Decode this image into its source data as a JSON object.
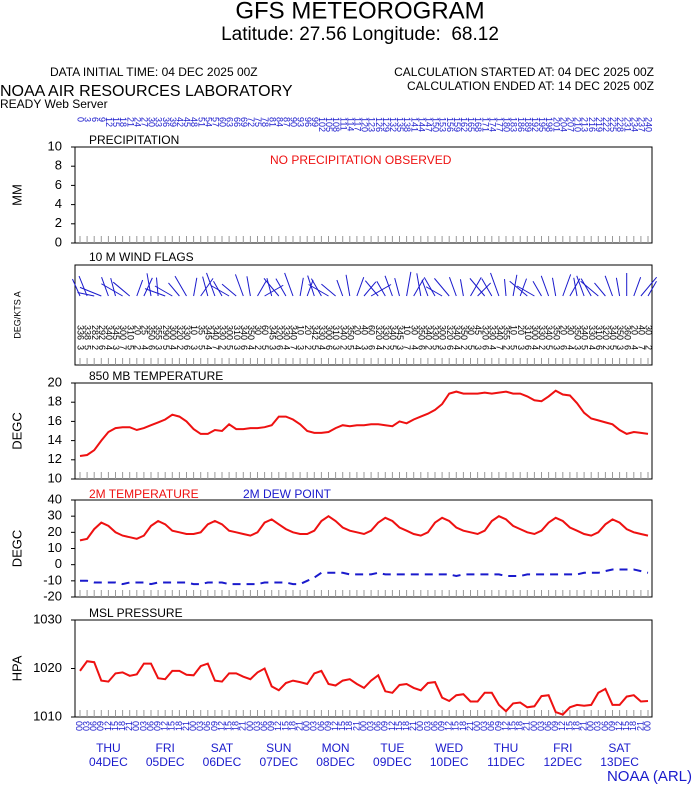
{
  "header": {
    "title": "GFS METEOROGRAM",
    "subtitle": "Latitude: 27.56 Longitude:  68.12",
    "data_initial": "DATA INITIAL TIME: 04 DEC 2025 00Z",
    "calc_started": "CALCULATION STARTED AT: 04 DEC 2025 00Z",
    "calc_ended": "CALCULATION ENDED AT: 14 DEC 2025 00Z",
    "lab": "NOAA AIR RESOURCES LABORATORY",
    "server": "READY Web Server",
    "footer": "NOAA (ARL)"
  },
  "time_axis": {
    "hours": [
      0,
      3,
      6,
      9,
      12,
      15,
      18,
      21,
      24,
      27,
      30,
      33,
      36,
      39,
      42,
      45,
      48,
      51,
      54,
      57,
      60,
      63,
      66,
      69,
      72,
      75,
      78,
      81,
      84,
      87,
      90,
      93,
      96,
      99,
      102,
      105,
      108,
      111,
      114,
      117,
      120,
      123,
      126,
      129,
      132,
      135,
      138,
      141,
      144,
      147,
      150,
      153,
      156,
      159,
      162,
      165,
      168,
      171,
      174,
      177,
      180,
      183,
      186,
      189,
      192,
      195,
      198,
      201,
      204,
      207,
      210,
      213,
      216,
      219,
      222,
      225,
      228,
      231,
      234,
      237,
      240
    ],
    "xlim": [
      0,
      240
    ],
    "hour_labels": [
      "00",
      "03",
      "06",
      "09",
      "12",
      "15",
      "18",
      "21",
      "00",
      "03",
      "06",
      "09",
      "12",
      "15",
      "18",
      "21",
      "00",
      "03",
      "06",
      "09",
      "12",
      "15",
      "18",
      "21",
      "00",
      "03",
      "06",
      "09",
      "12",
      "15",
      "18",
      "21",
      "00",
      "03",
      "06",
      "09",
      "12",
      "15",
      "18",
      "21",
      "00",
      "03",
      "06",
      "09",
      "12",
      "15",
      "18",
      "21",
      "00",
      "03",
      "06",
      "09",
      "12",
      "15",
      "18",
      "21",
      "00",
      "03",
      "06",
      "09",
      "12",
      "15",
      "18",
      "21",
      "00",
      "03",
      "06",
      "09",
      "12",
      "15",
      "18",
      "21",
      "00",
      "03",
      "06",
      "09",
      "12",
      "15",
      "18",
      "21",
      "00"
    ],
    "days": [
      {
        "name": "THU",
        "date": "04DEC"
      },
      {
        "name": "FRI",
        "date": "05DEC"
      },
      {
        "name": "SAT",
        "date": "06DEC"
      },
      {
        "name": "SUN",
        "date": "07DEC"
      },
      {
        "name": "MON",
        "date": "08DEC"
      },
      {
        "name": "TUE",
        "date": "09DEC"
      },
      {
        "name": "WED",
        "date": "10DEC"
      },
      {
        "name": "THU",
        "date": "11DEC"
      },
      {
        "name": "FRI",
        "date": "12DEC"
      },
      {
        "name": "SAT",
        "date": "13DEC"
      }
    ]
  },
  "chart_data": [
    {
      "type": "line",
      "title": "PRECIPITATION",
      "note": "NO PRECIPITATION OBSERVED",
      "y_label": "MM",
      "ylim": [
        0,
        10
      ],
      "yticks": [
        0,
        2,
        4,
        6,
        8,
        10
      ],
      "series": []
    },
    {
      "type": "wind",
      "title": "10 M  WIND FLAGS",
      "y_label": "DEG/KTS  A",
      "direction": [
        336,
        338,
        282,
        292,
        340,
        345,
        300,
        310,
        20,
        25,
        350,
        355,
        290,
        300,
        320,
        330,
        10,
        35,
        345,
        340,
        330,
        300,
        310,
        340,
        350,
        30,
        60,
        345,
        320,
        330,
        340,
        10,
        20,
        342,
        330,
        300,
        310,
        340,
        350,
        20,
        40,
        60,
        320,
        330,
        340,
        345,
        10,
        30,
        350,
        340,
        330,
        300,
        320,
        340,
        350,
        30,
        45,
        320,
        330,
        340,
        355,
        10,
        20,
        310,
        300,
        330,
        340,
        350,
        20,
        30,
        350,
        340,
        330,
        310,
        320,
        340,
        350,
        360,
        20,
        40,
        30
      ],
      "speed": [
        3,
        5,
        2,
        6,
        4,
        3,
        7,
        5,
        2,
        4,
        6,
        3,
        5,
        4,
        2,
        6,
        3,
        5,
        4,
        7,
        2,
        5,
        3,
        6,
        4,
        2,
        5,
        3,
        6,
        4,
        7,
        3,
        2,
        5,
        4,
        6,
        3,
        2,
        5,
        4,
        3,
        6,
        4,
        2,
        5,
        3,
        7,
        4,
        6,
        2,
        5,
        3,
        6,
        4,
        2,
        5,
        3,
        6,
        4,
        7,
        2,
        5,
        3,
        6,
        4,
        2,
        5,
        3,
        6,
        4,
        3,
        5,
        4,
        6,
        2,
        5,
        3,
        6,
        4,
        7,
        2
      ]
    },
    {
      "type": "line",
      "title": "850 MB  TEMPERATURE",
      "y_label": "DEGC",
      "ylim": [
        10,
        20
      ],
      "yticks": [
        10,
        12,
        14,
        16,
        18,
        20
      ],
      "series": [
        {
          "name": null,
          "color": "#ee1111",
          "values": [
            12.4,
            12.5,
            13.0,
            14.0,
            14.9,
            15.3,
            15.4,
            15.4,
            15.1,
            15.3,
            15.6,
            15.9,
            16.2,
            16.7,
            16.5,
            16.0,
            15.2,
            14.7,
            14.7,
            15.1,
            15.0,
            15.7,
            15.2,
            15.2,
            15.3,
            15.3,
            15.4,
            15.6,
            16.5,
            16.5,
            16.2,
            15.7,
            15.0,
            14.8,
            14.8,
            14.9,
            15.3,
            15.6,
            15.5,
            15.6,
            15.6,
            15.7,
            15.7,
            15.6,
            15.5,
            16.0,
            15.8,
            16.2,
            16.5,
            16.8,
            17.2,
            17.8,
            18.9,
            19.1,
            18.9,
            18.9,
            18.9,
            19.0,
            18.9,
            19.0,
            19.1,
            18.9,
            18.9,
            18.6,
            18.2,
            18.1,
            18.6,
            19.2,
            18.8,
            18.7,
            17.9,
            16.9,
            16.3,
            16.1,
            15.9,
            15.7,
            15.1,
            14.7,
            14.9,
            14.8,
            14.7
          ]
        }
      ]
    },
    {
      "type": "line",
      "title": null,
      "y_label": "DEGC",
      "ylim": [
        -20,
        40
      ],
      "yticks": [
        -20,
        -10,
        0,
        10,
        20,
        30,
        40
      ],
      "series": [
        {
          "name": "2M TEMPERATURE",
          "color": "#ee1111",
          "dashed": false,
          "values": [
            15,
            16,
            22,
            26,
            24,
            20,
            18,
            17,
            16,
            18,
            24,
            27,
            25,
            21,
            20,
            19,
            19,
            20,
            25,
            27,
            25,
            21,
            20,
            19,
            18,
            20,
            26,
            28,
            25,
            22,
            20,
            19,
            19,
            21,
            27,
            30,
            27,
            23,
            21,
            20,
            19,
            21,
            26,
            29,
            27,
            23,
            21,
            19,
            18,
            20,
            26,
            29,
            27,
            23,
            21,
            20,
            19,
            21,
            27,
            30,
            28,
            24,
            22,
            20,
            19,
            21,
            26,
            29,
            27,
            23,
            21,
            19,
            18,
            20,
            25,
            28,
            26,
            22,
            20,
            19,
            18
          ]
        },
        {
          "name": "2M  DEW POINT",
          "color": "#1a1acc",
          "dashed": true,
          "values": [
            -10,
            -10,
            -11,
            -11,
            -11,
            -11,
            -12,
            -11,
            -11,
            -11,
            -12,
            -11,
            -11,
            -11,
            -11,
            -11,
            -12,
            -12,
            -11,
            -11,
            -11,
            -12,
            -12,
            -12,
            -12,
            -12,
            -11,
            -11,
            -11,
            -11,
            -12,
            -12,
            -10,
            -8,
            -5,
            -5,
            -5,
            -5,
            -6,
            -6,
            -6,
            -6,
            -5,
            -6,
            -6,
            -6,
            -6,
            -6,
            -6,
            -6,
            -6,
            -6,
            -6,
            -7,
            -6,
            -6,
            -6,
            -6,
            -6,
            -6,
            -7,
            -7,
            -7,
            -6,
            -6,
            -6,
            -6,
            -6,
            -6,
            -6,
            -6,
            -5,
            -5,
            -5,
            -4,
            -3,
            -3,
            -3,
            -3,
            -4,
            -5
          ]
        }
      ]
    },
    {
      "type": "line",
      "title": "MSL PRESSURE",
      "y_label": "HPA",
      "ylim": [
        1010,
        1030
      ],
      "yticks": [
        1010,
        1020,
        1030
      ],
      "series": [
        {
          "name": null,
          "color": "#ee1111",
          "values": [
            1019.5,
            1021.5,
            1021.3,
            1017.5,
            1017.3,
            1019,
            1019.2,
            1018.5,
            1018.8,
            1021,
            1021,
            1018,
            1017.8,
            1019.5,
            1019.5,
            1018.7,
            1018.6,
            1020.5,
            1021,
            1017.5,
            1017.3,
            1019,
            1019,
            1018.3,
            1017.8,
            1019.2,
            1020,
            1016.3,
            1015.5,
            1017,
            1017.5,
            1017.2,
            1016.8,
            1019,
            1019.5,
            1016.8,
            1016.5,
            1017.5,
            1017.8,
            1016.8,
            1016,
            1017.5,
            1018.6,
            1015.3,
            1015,
            1016.6,
            1016.8,
            1016,
            1015.5,
            1017,
            1017.2,
            1014,
            1013.3,
            1014.5,
            1014.7,
            1013.2,
            1013.2,
            1015,
            1015,
            1012.5,
            1011.2,
            1012.8,
            1013,
            1012,
            1012.2,
            1014.3,
            1014.5,
            1011,
            1010.5,
            1012,
            1012.5,
            1012.3,
            1012.5,
            1015,
            1015.8,
            1012.5,
            1012.5,
            1014.2,
            1014.5,
            1013.2,
            1013.3
          ]
        }
      ]
    }
  ]
}
